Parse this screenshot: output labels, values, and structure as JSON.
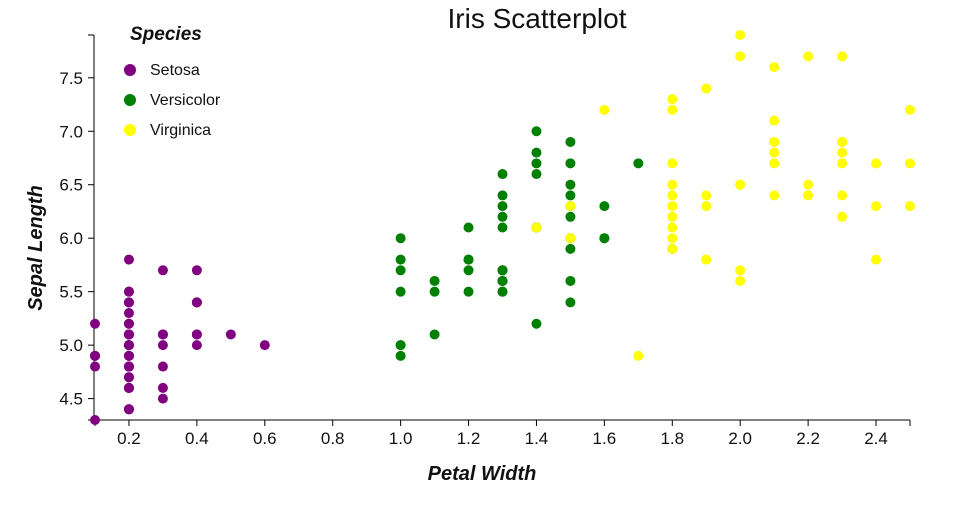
{
  "chart_data": {
    "type": "scatter",
    "title": "Iris Scatterplot",
    "xlabel": "Petal Width",
    "ylabel": "Sepal Length",
    "xlim": [
      0.1,
      2.5
    ],
    "ylim": [
      4.3,
      7.9
    ],
    "xticks": [
      "0.2",
      "0.4",
      "0.6",
      "0.8",
      "1.0",
      "1.2",
      "1.4",
      "1.6",
      "1.8",
      "2.0",
      "2.2",
      "2.4"
    ],
    "yticks": [
      "4.5",
      "5.0",
      "5.5",
      "6.0",
      "6.5",
      "7.0",
      "7.5"
    ],
    "grid": false,
    "legend": {
      "title": "Species",
      "position": "top-left"
    },
    "series": [
      {
        "name": "Setosa",
        "color": "#800080",
        "points": [
          [
            0.2,
            5.1
          ],
          [
            0.2,
            4.9
          ],
          [
            0.2,
            4.7
          ],
          [
            0.2,
            4.6
          ],
          [
            0.2,
            5.0
          ],
          [
            0.4,
            5.4
          ],
          [
            0.3,
            4.6
          ],
          [
            0.2,
            5.0
          ],
          [
            0.2,
            4.4
          ],
          [
            0.1,
            4.9
          ],
          [
            0.2,
            5.4
          ],
          [
            0.2,
            4.8
          ],
          [
            0.1,
            4.8
          ],
          [
            0.1,
            4.3
          ],
          [
            0.2,
            5.8
          ],
          [
            0.4,
            5.7
          ],
          [
            0.4,
            5.4
          ],
          [
            0.3,
            5.1
          ],
          [
            0.3,
            5.7
          ],
          [
            0.3,
            5.1
          ],
          [
            0.2,
            5.4
          ],
          [
            0.4,
            5.1
          ],
          [
            0.2,
            4.6
          ],
          [
            0.5,
            5.1
          ],
          [
            0.2,
            4.8
          ],
          [
            0.2,
            5.0
          ],
          [
            0.4,
            5.0
          ],
          [
            0.2,
            5.2
          ],
          [
            0.2,
            5.2
          ],
          [
            0.2,
            4.7
          ],
          [
            0.2,
            4.8
          ],
          [
            0.4,
            5.4
          ],
          [
            0.1,
            5.2
          ],
          [
            0.2,
            5.5
          ],
          [
            0.2,
            4.9
          ],
          [
            0.2,
            5.0
          ],
          [
            0.2,
            5.5
          ],
          [
            0.1,
            4.9
          ],
          [
            0.2,
            4.4
          ],
          [
            0.2,
            5.1
          ],
          [
            0.3,
            5.0
          ],
          [
            0.3,
            4.5
          ],
          [
            0.2,
            4.4
          ],
          [
            0.6,
            5.0
          ],
          [
            0.4,
            5.1
          ],
          [
            0.3,
            4.8
          ],
          [
            0.2,
            5.1
          ],
          [
            0.2,
            4.6
          ],
          [
            0.2,
            5.3
          ],
          [
            0.2,
            5.0
          ]
        ]
      },
      {
        "name": "Versicolor",
        "color": "#008000",
        "points": [
          [
            1.4,
            7.0
          ],
          [
            1.5,
            6.4
          ],
          [
            1.5,
            6.9
          ],
          [
            1.3,
            5.5
          ],
          [
            1.5,
            6.5
          ],
          [
            1.3,
            5.7
          ],
          [
            1.6,
            6.3
          ],
          [
            1.0,
            4.9
          ],
          [
            1.3,
            6.6
          ],
          [
            1.4,
            5.2
          ],
          [
            1.0,
            5.0
          ],
          [
            1.5,
            5.9
          ],
          [
            1.0,
            6.0
          ],
          [
            1.4,
            6.1
          ],
          [
            1.3,
            5.6
          ],
          [
            1.4,
            6.7
          ],
          [
            1.5,
            5.6
          ],
          [
            1.0,
            5.8
          ],
          [
            1.5,
            6.2
          ],
          [
            1.1,
            5.6
          ],
          [
            1.8,
            5.9
          ],
          [
            1.3,
            6.1
          ],
          [
            1.5,
            6.3
          ],
          [
            1.2,
            6.1
          ],
          [
            1.3,
            6.4
          ],
          [
            1.4,
            6.6
          ],
          [
            1.4,
            6.8
          ],
          [
            1.7,
            6.7
          ],
          [
            1.5,
            6.0
          ],
          [
            1.0,
            5.7
          ],
          [
            1.1,
            5.5
          ],
          [
            1.0,
            5.5
          ],
          [
            1.2,
            5.8
          ],
          [
            1.6,
            6.0
          ],
          [
            1.5,
            5.4
          ],
          [
            1.6,
            6.0
          ],
          [
            1.5,
            6.7
          ],
          [
            1.3,
            6.3
          ],
          [
            1.3,
            5.6
          ],
          [
            1.3,
            5.5
          ],
          [
            1.2,
            5.5
          ],
          [
            1.4,
            6.1
          ],
          [
            1.2,
            5.8
          ],
          [
            1.0,
            5.0
          ],
          [
            1.3,
            5.6
          ],
          [
            1.2,
            5.7
          ],
          [
            1.3,
            5.7
          ],
          [
            1.3,
            6.2
          ],
          [
            1.1,
            5.1
          ],
          [
            1.3,
            5.7
          ]
        ]
      },
      {
        "name": "Virginica",
        "color": "#ffff00",
        "points": [
          [
            2.5,
            6.3
          ],
          [
            1.9,
            5.8
          ],
          [
            2.1,
            7.1
          ],
          [
            1.8,
            6.3
          ],
          [
            2.2,
            6.5
          ],
          [
            2.1,
            7.6
          ],
          [
            1.7,
            4.9
          ],
          [
            1.8,
            7.3
          ],
          [
            1.8,
            6.7
          ],
          [
            2.5,
            7.2
          ],
          [
            2.0,
            6.5
          ],
          [
            1.9,
            6.4
          ],
          [
            2.1,
            6.8
          ],
          [
            2.0,
            5.7
          ],
          [
            2.4,
            5.8
          ],
          [
            2.3,
            6.4
          ],
          [
            1.8,
            6.5
          ],
          [
            2.2,
            7.7
          ],
          [
            2.3,
            7.7
          ],
          [
            1.5,
            6.0
          ],
          [
            2.3,
            6.9
          ],
          [
            2.0,
            5.6
          ],
          [
            2.0,
            7.7
          ],
          [
            1.8,
            6.3
          ],
          [
            2.1,
            6.7
          ],
          [
            1.8,
            7.2
          ],
          [
            1.8,
            6.2
          ],
          [
            1.8,
            6.1
          ],
          [
            2.1,
            6.4
          ],
          [
            1.6,
            7.2
          ],
          [
            1.9,
            7.4
          ],
          [
            2.0,
            7.9
          ],
          [
            2.2,
            6.4
          ],
          [
            1.5,
            6.3
          ],
          [
            1.4,
            6.1
          ],
          [
            2.3,
            7.7
          ],
          [
            2.4,
            6.3
          ],
          [
            1.8,
            6.4
          ],
          [
            1.8,
            6.0
          ],
          [
            2.1,
            6.9
          ],
          [
            2.4,
            6.7
          ],
          [
            2.3,
            6.9
          ],
          [
            1.9,
            5.8
          ],
          [
            2.3,
            6.8
          ],
          [
            2.5,
            6.7
          ],
          [
            2.3,
            6.7
          ],
          [
            1.9,
            6.3
          ],
          [
            2.0,
            6.5
          ],
          [
            2.3,
            6.2
          ],
          [
            1.8,
            5.9
          ]
        ]
      }
    ]
  }
}
